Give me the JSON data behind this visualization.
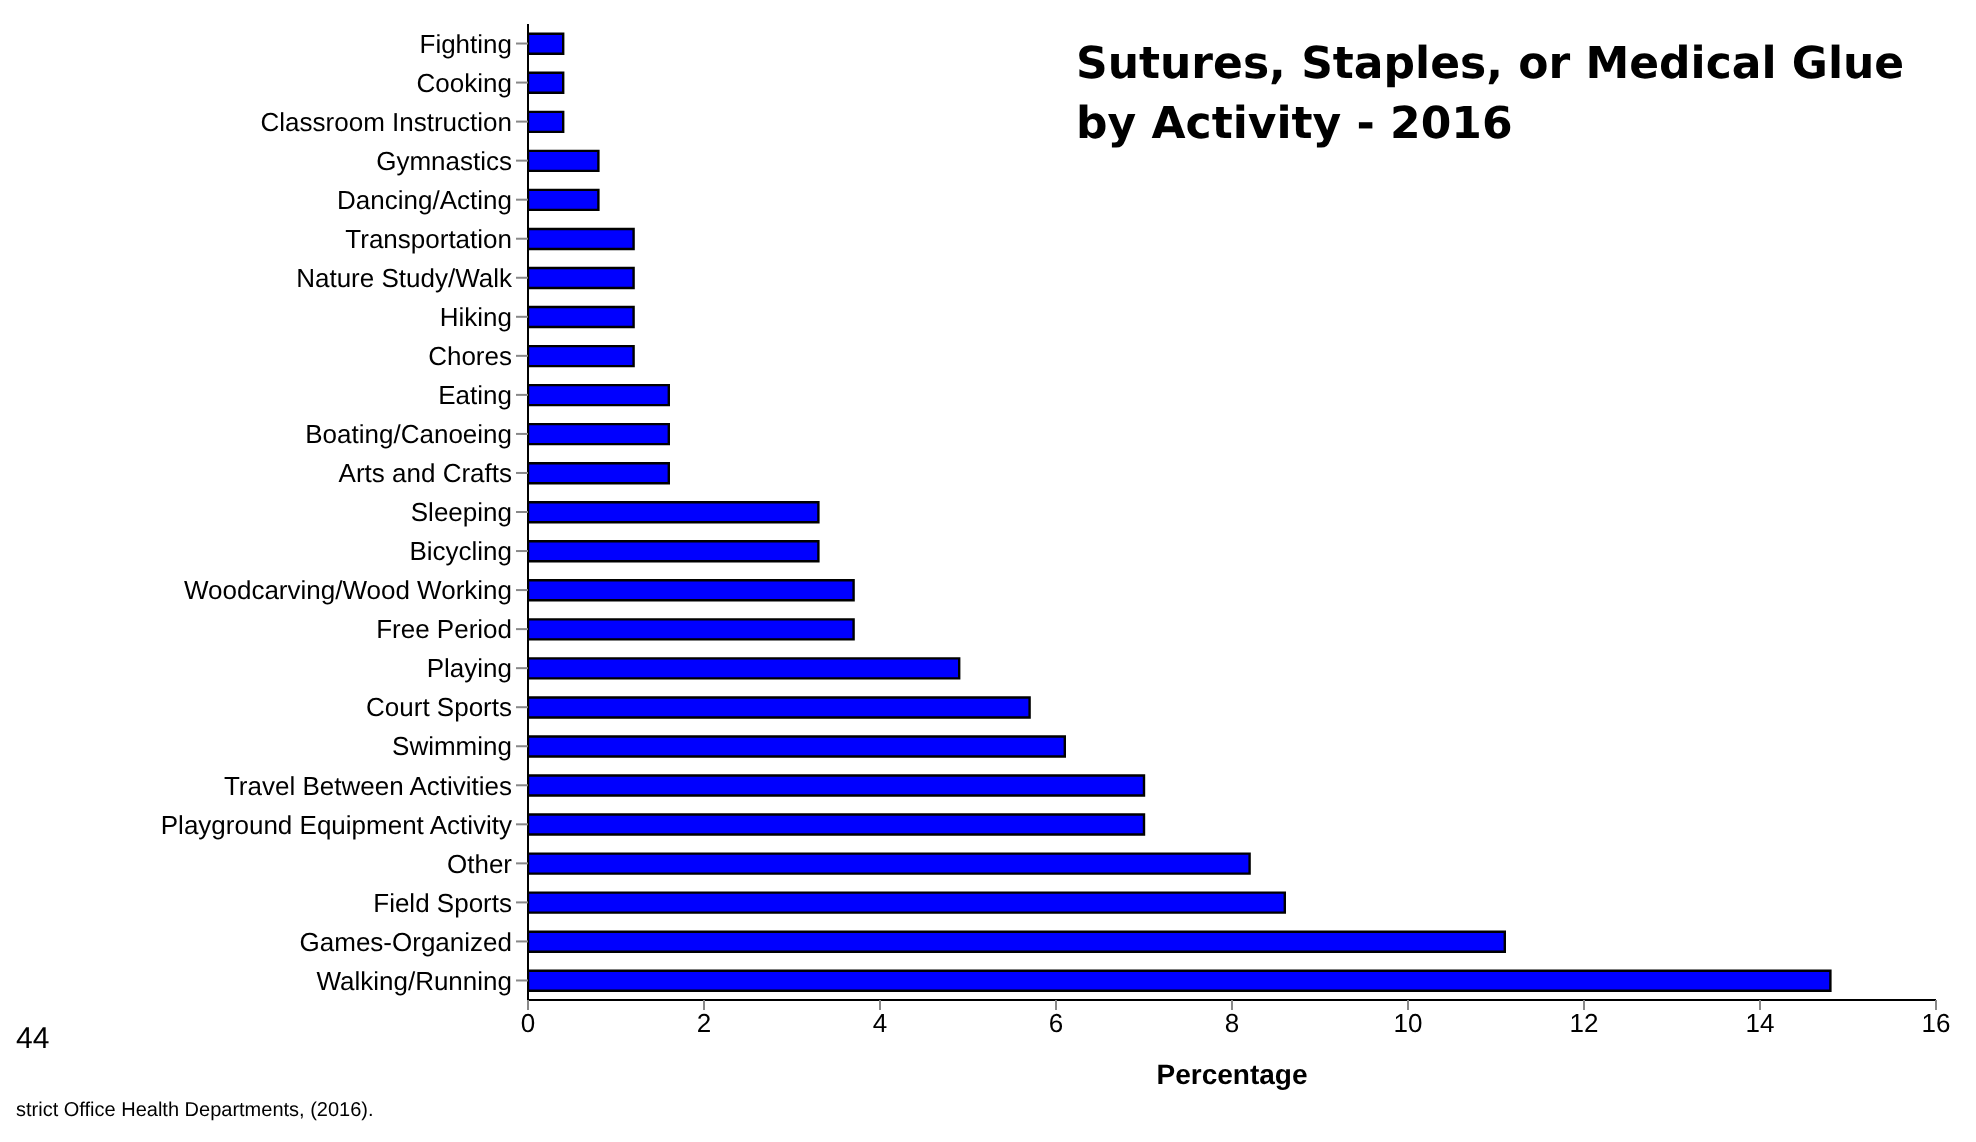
{
  "chart_data": {
    "type": "bar",
    "orientation": "horizontal",
    "title": "Sutures, Staples, or Medical Glue\nby Activity - 2016",
    "xlabel": "Percentage",
    "categories": [
      "Fighting",
      "Cooking",
      "Classroom Instruction",
      "Gymnastics",
      "Dancing/Acting",
      "Transportation",
      "Nature Study/Walk",
      "Hiking",
      "Chores",
      "Eating",
      "Boating/Canoeing",
      "Arts and Crafts",
      "Sleeping",
      "Bicycling",
      "Woodcarving/Wood Working",
      "Free Period",
      "Playing",
      "Court Sports",
      "Swimming",
      "Travel Between Activities",
      "Playground Equipment Activity",
      "Other",
      "Field Sports",
      "Games-Organized",
      "Walking/Running"
    ],
    "values": [
      0.4,
      0.4,
      0.4,
      0.8,
      0.8,
      1.2,
      1.2,
      1.2,
      1.2,
      1.6,
      1.6,
      1.6,
      3.3,
      3.3,
      3.7,
      3.7,
      4.9,
      5.7,
      6.1,
      7.0,
      7.0,
      8.2,
      8.6,
      11.1,
      14.8
    ],
    "color": "#0000ff",
    "xlim": [
      0,
      16
    ],
    "xticks": [
      0,
      2,
      4,
      6,
      8,
      10,
      12,
      14,
      16
    ],
    "grid": false,
    "legend": false,
    "annotations": [
      "44",
      "strict Office Health Departments, (2016)."
    ]
  }
}
